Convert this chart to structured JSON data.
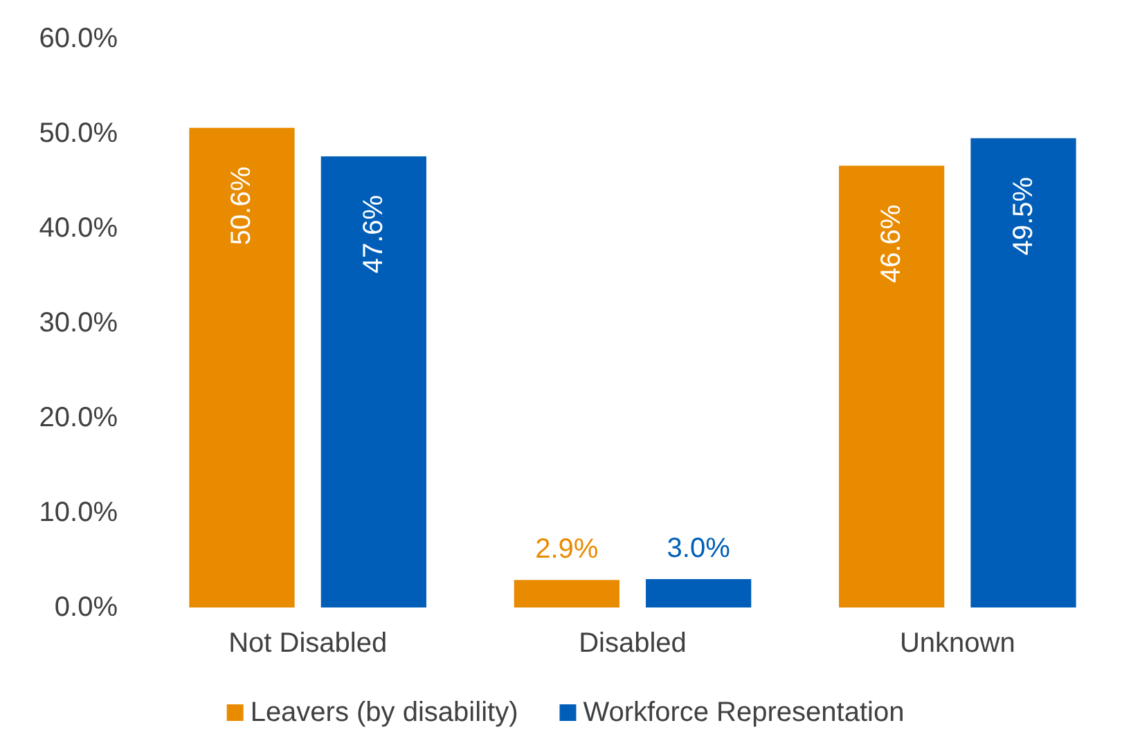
{
  "chart_data": {
    "type": "bar",
    "categories": [
      "Not Disabled",
      "Disabled",
      "Unknown"
    ],
    "series": [
      {
        "name": "Leavers (by disability)",
        "color": "#e98b00",
        "values": [
          50.6,
          2.9,
          46.6
        ],
        "value_labels": [
          "50.6%",
          "2.9%",
          "46.6%"
        ]
      },
      {
        "name": "Workforce Representation",
        "color": "#005eb8",
        "values": [
          47.6,
          3.0,
          49.5
        ],
        "value_labels": [
          "47.6%",
          "3.0%",
          "49.5%"
        ]
      }
    ],
    "ylim": [
      0,
      60
    ],
    "yticks": [
      {
        "value": 0,
        "label": "0.0%"
      },
      {
        "value": 10,
        "label": "10.0%"
      },
      {
        "value": 20,
        "label": "20.0%"
      },
      {
        "value": 30,
        "label": "30.0%"
      },
      {
        "value": 40,
        "label": "40.0%"
      },
      {
        "value": 50,
        "label": "50.0%"
      },
      {
        "value": 60,
        "label": "60.0%"
      }
    ],
    "grid": false,
    "legend": "bottom"
  }
}
